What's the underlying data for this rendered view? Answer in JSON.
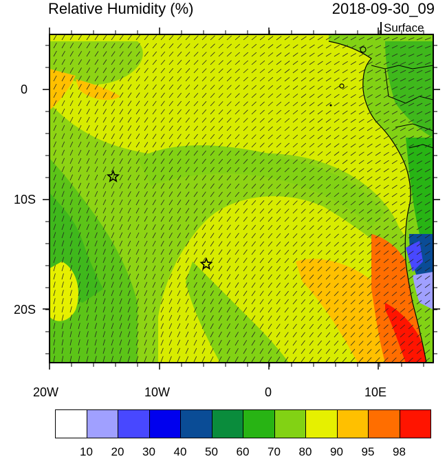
{
  "header": {
    "title": "Relative Humidity (%)",
    "datetime": "2018-09-30_09",
    "level": "Surface"
  },
  "axes": {
    "x_ticks": [
      "20W",
      "10W",
      "0",
      "10E"
    ],
    "y_ticks": [
      "0",
      "10S",
      "20S"
    ]
  },
  "map": {
    "lon_range": [
      -20,
      15
    ],
    "lat_range": [
      -25,
      5
    ],
    "markers": [
      {
        "name": "star",
        "lon": -14.2,
        "lat": -8.0
      },
      {
        "name": "star",
        "lon": -5.7,
        "lat": -16.0
      }
    ]
  },
  "colorbar": {
    "labels": [
      "10",
      "20",
      "30",
      "40",
      "50",
      "60",
      "70",
      "80",
      "90",
      "95",
      "98"
    ],
    "colors": [
      "#ffffff",
      "#a0a0ff",
      "#4848ff",
      "#0000ee",
      "#0a4c96",
      "#0a8c3c",
      "#28b414",
      "#82d214",
      "#e6f000",
      "#ffc000",
      "#ff6e00",
      "#ff1400"
    ]
  }
}
